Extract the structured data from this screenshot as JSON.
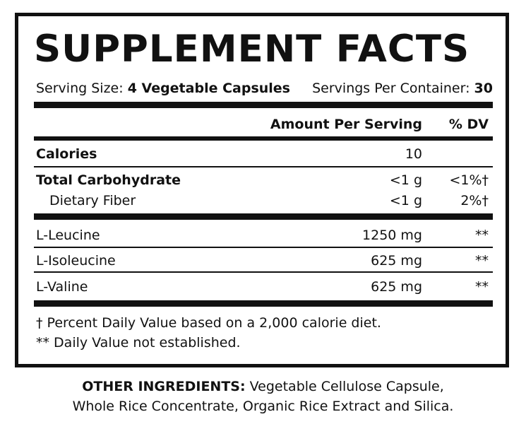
{
  "title": "SUPPLEMENT FACTS",
  "serving": {
    "size_label": "Serving Size:",
    "size_value": "4 Vegetable Capsules",
    "per_container_label": "Servings Per Container:",
    "per_container_value": "30"
  },
  "header": {
    "amount": "Amount Per Serving",
    "dv": "% DV"
  },
  "rows": [
    {
      "label": "Calories",
      "amount": "10",
      "dv": ""
    },
    {
      "label": "Total Carbohydrate",
      "amount": "<1 g",
      "dv": "<1%†"
    },
    {
      "label": "Dietary Fiber",
      "amount": "<1 g",
      "dv": "2%†"
    },
    {
      "label": "L-Leucine",
      "amount": "1250 mg",
      "dv": "**"
    },
    {
      "label": "L-Isoleucine",
      "amount": "625 mg",
      "dv": "**"
    },
    {
      "label": "L-Valine",
      "amount": "625 mg",
      "dv": "**"
    }
  ],
  "footnotes": [
    "† Percent Daily Value based on a 2,000 calorie diet.",
    "** Daily Value not established."
  ],
  "other_ingredients": {
    "label": "OTHER INGREDIENTS:",
    "line1": "Vegetable Cellulose Capsule,",
    "line2": "Whole Rice Concentrate, Organic Rice Extract and Silica."
  }
}
